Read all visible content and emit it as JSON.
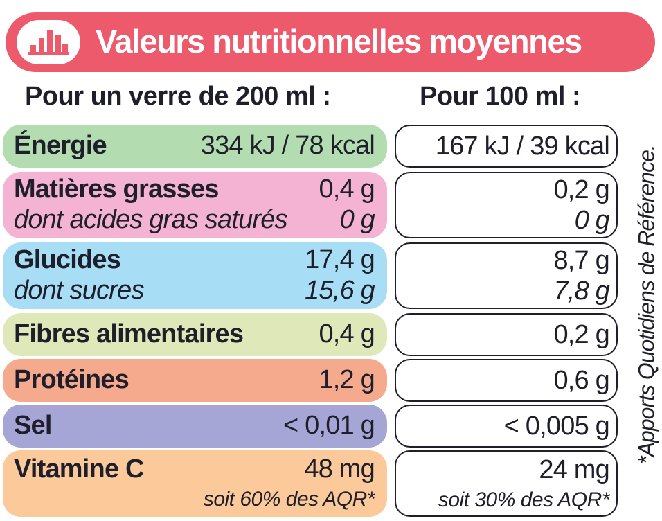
{
  "header": {
    "title": "Valeurs nutritionnelles moyennes",
    "icon": "bar-chart-icon",
    "background_color": "#ed5a6c"
  },
  "columns": {
    "left": "Pour un verre de 200 ml :",
    "right": "Pour 100 ml :"
  },
  "rows": [
    {
      "label": "Énergie",
      "value_200ml": "334 kJ / 78 kcal",
      "value_100ml": "167 kJ / 39 kcal",
      "color": "#b3dcb0"
    },
    {
      "label": "Matières grasses",
      "value_200ml": "0,4 g",
      "value_100ml": "0,2 g",
      "sub_label": "dont acides gras saturés",
      "sub_value_200ml": "0 g",
      "sub_value_100ml": "0 g",
      "color": "#f4b3d2"
    },
    {
      "label": "Glucides",
      "value_200ml": "17,4 g",
      "value_100ml": "8,7 g",
      "sub_label": "dont sucres",
      "sub_value_200ml": "15,6 g",
      "sub_value_100ml": "7,8 g",
      "color": "#a8def5"
    },
    {
      "label": "Fibres alimentaires",
      "value_200ml": "0,4 g",
      "value_100ml": "0,2 g",
      "color": "#dfe8b8"
    },
    {
      "label": "Protéines",
      "value_200ml": "1,2 g",
      "value_100ml": "0,6 g",
      "color": "#f5a98d"
    },
    {
      "label": "Sel",
      "value_200ml": "< 0,01 g",
      "value_100ml": "< 0,005 g",
      "color": "#a6a6d6"
    },
    {
      "label": "Vitamine C",
      "value_200ml": "48 mg",
      "value_100ml": "24 mg",
      "sub_value_200ml": "soit 60% des AQR*",
      "sub_value_100ml": "soit 30% des AQR*",
      "color": "#fbc99a"
    }
  ],
  "footnote": "*Apports Quotidiens de Référence."
}
